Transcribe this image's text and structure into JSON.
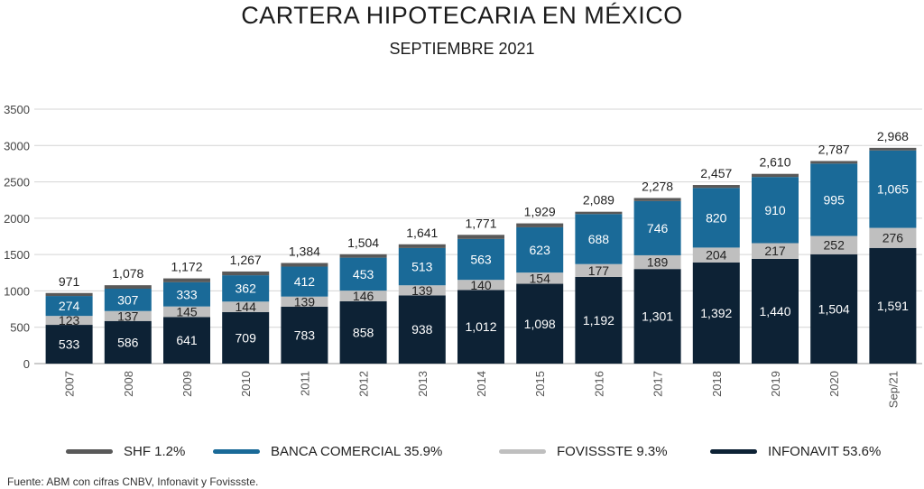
{
  "chart_data": {
    "type": "bar",
    "stacked": true,
    "title": "CARTERA HIPOTECARIA EN MÉXICO",
    "subtitle": "SEPTIEMBRE 2021",
    "source": "Fuente: ABM con cifras CNBV, Infonavit y Fovissste.",
    "categories": [
      "2007",
      "2008",
      "2009",
      "2010",
      "2011",
      "2012",
      "2013",
      "2014",
      "2015",
      "2016",
      "2017",
      "2018",
      "2019",
      "2020",
      "Sep/21"
    ],
    "ylim": [
      0,
      3500
    ],
    "yticks": [
      0,
      500,
      1000,
      1500,
      2000,
      2500,
      3000,
      3500
    ],
    "grid": true,
    "legend_position": "bottom",
    "series": [
      {
        "name": "INFONAVIT 53.6%",
        "color": "#0d2235",
        "values": [
          533,
          586,
          641,
          709,
          783,
          858,
          938,
          1012,
          1098,
          1192,
          1301,
          1392,
          1440,
          1504,
          1591
        ],
        "labels": [
          "533",
          "586",
          "641",
          "709",
          "783",
          "858",
          "938",
          "1,012",
          "1,098",
          "1,192",
          "1,301",
          "1,392",
          "1,440",
          "1,504",
          "1,591"
        ]
      },
      {
        "name": "FOVISSSTE 9.3%",
        "color": "#bfbfbf",
        "values": [
          123,
          137,
          145,
          144,
          139,
          146,
          139,
          140,
          154,
          177,
          189,
          204,
          217,
          252,
          276
        ],
        "labels": [
          "123",
          "137",
          "145",
          "144",
          "139",
          "146",
          "139",
          "140",
          "154",
          "177",
          "189",
          "204",
          "217",
          "252",
          "276"
        ]
      },
      {
        "name": "BANCA COMERCIAL 35.9%",
        "color": "#1a6a98",
        "values": [
          274,
          307,
          333,
          362,
          412,
          453,
          513,
          563,
          623,
          688,
          746,
          820,
          910,
          995,
          1065
        ],
        "labels": [
          "274",
          "307",
          "333",
          "362",
          "412",
          "453",
          "513",
          "563",
          "623",
          "688",
          "746",
          "820",
          "910",
          "995",
          "1,065"
        ]
      },
      {
        "name": "SHF 1.2%",
        "color": "#595959",
        "values": [
          41,
          48,
          53,
          52,
          50,
          47,
          51,
          56,
          54,
          32,
          42,
          41,
          43,
          36,
          36
        ],
        "labels": []
      }
    ],
    "totals": [
      971,
      1078,
      1172,
      1267,
      1384,
      1504,
      1641,
      1771,
      1929,
      2089,
      2278,
      2457,
      2610,
      2787,
      2968
    ],
    "total_labels": [
      "971",
      "1,078",
      "1,172",
      "1,267",
      "1,384",
      "1,504",
      "1,641",
      "1,771",
      "1,929",
      "2,089",
      "2,278",
      "2,457",
      "2,610",
      "2,787",
      "2,968"
    ],
    "legend_order": [
      "SHF 1.2%",
      "BANCA COMERCIAL 35.9%",
      "FOVISSSTE 9.3%",
      "INFONAVIT 53.6%"
    ]
  }
}
